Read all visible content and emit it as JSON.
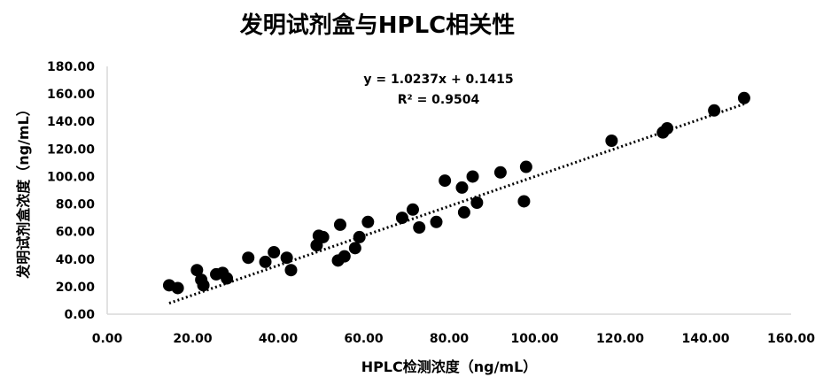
{
  "chart_data": {
    "type": "scatter",
    "title": "发明试剂盒与HPLC相关性",
    "xlabel": "HPLC检测浓度（ng/mL）",
    "ylabel": "发明试剂盒浓度（ng/mL）",
    "xlim": [
      0,
      160
    ],
    "ylim": [
      0,
      180
    ],
    "x_ticks": [
      "0.00",
      "20.00",
      "40.00",
      "60.00",
      "80.00",
      "100.00",
      "120.00",
      "140.00",
      "160.00"
    ],
    "y_ticks": [
      "0.00",
      "20.00",
      "40.00",
      "60.00",
      "80.00",
      "100.00",
      "120.00",
      "140.00",
      "160.00",
      "180.00"
    ],
    "trendline": {
      "slope": 1.0237,
      "intercept": 0.1415,
      "x_range": [
        14.5,
        149
      ],
      "style": "dotted",
      "equation": "y = 1.0237x + 0.1415",
      "r_squared": "R² = 0.9504"
    },
    "grid": false,
    "legend": "none",
    "marker_color": "#000000",
    "points": [
      {
        "x": 14.5,
        "y": 21
      },
      {
        "x": 16.5,
        "y": 19
      },
      {
        "x": 21,
        "y": 32
      },
      {
        "x": 22,
        "y": 25
      },
      {
        "x": 22.5,
        "y": 21
      },
      {
        "x": 25.5,
        "y": 29
      },
      {
        "x": 27,
        "y": 30
      },
      {
        "x": 28,
        "y": 26
      },
      {
        "x": 33,
        "y": 41
      },
      {
        "x": 37,
        "y": 38
      },
      {
        "x": 39,
        "y": 45
      },
      {
        "x": 42,
        "y": 41
      },
      {
        "x": 43,
        "y": 32
      },
      {
        "x": 49,
        "y": 50
      },
      {
        "x": 49.5,
        "y": 57
      },
      {
        "x": 50.5,
        "y": 56
      },
      {
        "x": 54,
        "y": 39
      },
      {
        "x": 54.5,
        "y": 65
      },
      {
        "x": 55.5,
        "y": 42
      },
      {
        "x": 58,
        "y": 48
      },
      {
        "x": 59,
        "y": 56
      },
      {
        "x": 61,
        "y": 67
      },
      {
        "x": 69,
        "y": 70
      },
      {
        "x": 71.5,
        "y": 76
      },
      {
        "x": 73,
        "y": 63
      },
      {
        "x": 77,
        "y": 67
      },
      {
        "x": 79,
        "y": 97
      },
      {
        "x": 83,
        "y": 92
      },
      {
        "x": 83.5,
        "y": 74
      },
      {
        "x": 85.5,
        "y": 100
      },
      {
        "x": 86.5,
        "y": 81
      },
      {
        "x": 92,
        "y": 103
      },
      {
        "x": 97.5,
        "y": 82
      },
      {
        "x": 98,
        "y": 107
      },
      {
        "x": 118,
        "y": 126
      },
      {
        "x": 130,
        "y": 132
      },
      {
        "x": 131,
        "y": 135
      },
      {
        "x": 142,
        "y": 148
      },
      {
        "x": 149,
        "y": 157
      }
    ]
  }
}
